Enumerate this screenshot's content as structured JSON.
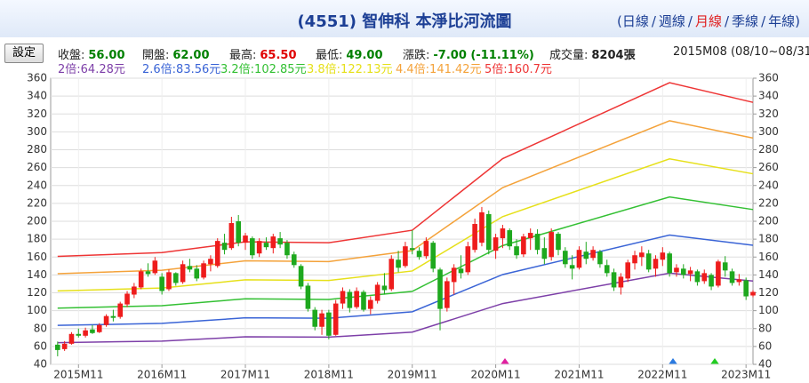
{
  "header": {
    "title": "(4551) 智伸科 本淨比河流圖",
    "period_open": "(",
    "period_sep": "/",
    "period_close": ")",
    "periods": [
      "日線",
      "週線",
      "月線",
      "季線",
      "年線"
    ],
    "active_period_index": 2,
    "button": "設定",
    "stats": [
      {
        "label": "收盤:",
        "value": "56.00",
        "color": "#008000"
      },
      {
        "label": "開盤:",
        "value": "62.00",
        "color": "#008000"
      },
      {
        "label": "最高:",
        "value": "65.50",
        "color": "#e00000"
      },
      {
        "label": "最低:",
        "value": "49.00",
        "color": "#008000"
      },
      {
        "label": "漲跌:",
        "value": "-7.00 (-11.11%)",
        "color": "#008000"
      },
      {
        "label": "成交量:",
        "value": "8204張",
        "color": "#222222"
      }
    ],
    "range": "2015M08 (08/10~08/31)"
  },
  "chart_data": {
    "type": "candlestick",
    "up_color": "#ee1c1c",
    "down_color": "#1ea81e",
    "grid": true,
    "x": [
      "2015M08",
      "2015M09",
      "2015M10",
      "2015M11",
      "2015M12",
      "2016M01",
      "2016M02",
      "2016M03",
      "2016M04",
      "2016M05",
      "2016M06",
      "2016M07",
      "2016M08",
      "2016M09",
      "2016M10",
      "2016M11",
      "2016M12",
      "2017M01",
      "2017M02",
      "2017M03",
      "2017M04",
      "2017M05",
      "2017M06",
      "2017M07",
      "2017M08",
      "2017M09",
      "2017M10",
      "2017M11",
      "2017M12",
      "2018M01",
      "2018M02",
      "2018M03",
      "2018M04",
      "2018M05",
      "2018M06",
      "2018M07",
      "2018M08",
      "2018M09",
      "2018M10",
      "2018M11",
      "2018M12",
      "2019M01",
      "2019M02",
      "2019M03",
      "2019M04",
      "2019M05",
      "2019M06",
      "2019M07",
      "2019M08",
      "2019M09",
      "2019M10",
      "2019M11",
      "2019M12",
      "2020M01",
      "2020M02",
      "2020M03",
      "2020M04",
      "2020M05",
      "2020M06",
      "2020M07",
      "2020M08",
      "2020M09",
      "2020M10",
      "2020M11",
      "2020M12",
      "2021M01",
      "2021M02",
      "2021M03",
      "2021M04",
      "2021M05",
      "2021M06",
      "2021M07",
      "2021M08",
      "2021M09",
      "2021M10",
      "2021M11",
      "2021M12",
      "2022M01",
      "2022M02",
      "2022M03",
      "2022M04",
      "2022M05",
      "2022M06",
      "2022M07",
      "2022M08",
      "2022M09",
      "2022M10",
      "2022M11",
      "2022M12",
      "2023M01",
      "2023M02",
      "2023M03",
      "2023M04",
      "2023M05",
      "2023M06",
      "2023M07",
      "2023M08",
      "2023M09",
      "2023M10",
      "2023M11",
      "2023M12"
    ],
    "open": [
      62,
      57,
      63,
      74,
      72,
      79,
      76,
      84,
      94,
      93,
      107,
      118,
      126,
      144,
      142,
      138,
      124,
      142,
      132,
      150,
      147,
      137,
      152,
      150,
      176,
      170,
      200,
      176,
      181,
      164,
      176,
      170,
      181,
      176,
      163,
      150,
      128,
      101,
      82,
      98,
      73,
      108,
      121,
      104,
      121,
      102,
      111,
      128,
      124,
      157,
      150,
      170,
      167,
      161,
      176,
      146,
      103,
      132,
      147,
      143,
      168,
      176,
      208,
      167,
      181,
      190,
      172,
      163,
      181,
      186,
      170,
      160,
      186,
      167,
      151,
      148,
      166,
      159,
      166,
      151,
      143,
      126,
      136,
      153,
      160,
      164,
      147,
      157,
      164,
      143,
      147,
      141,
      144,
      133,
      140,
      128,
      154,
      144,
      132,
      134,
      117
    ],
    "high": [
      65.5,
      66,
      76,
      80,
      81,
      84,
      86,
      96,
      101,
      110,
      122,
      131,
      147,
      153,
      160,
      142,
      146,
      143,
      156,
      158,
      151,
      156,
      162,
      181,
      186,
      205,
      207,
      187,
      183,
      181,
      182,
      186,
      188,
      179,
      166,
      152,
      131,
      104,
      101,
      101,
      112,
      126,
      124,
      126,
      123,
      116,
      132,
      142,
      162,
      167,
      177,
      190,
      171,
      182,
      178,
      148,
      137,
      152,
      162,
      177,
      203,
      216,
      212,
      186,
      196,
      192,
      180,
      186,
      192,
      191,
      182,
      192,
      188,
      171,
      162,
      172,
      177,
      172,
      168,
      157,
      147,
      142,
      157,
      167,
      172,
      168,
      162,
      171,
      166,
      152,
      152,
      149,
      146,
      146,
      142,
      157,
      161,
      147,
      141,
      137,
      123
    ],
    "low": [
      49,
      55,
      62,
      70,
      70,
      74,
      75,
      82,
      88,
      91,
      104,
      114,
      124,
      138,
      140,
      118,
      122,
      128,
      130,
      143,
      133,
      135,
      144,
      148,
      163,
      168,
      172,
      168,
      158,
      160,
      168,
      164,
      170,
      158,
      148,
      124,
      99,
      78,
      73,
      68,
      72,
      102,
      98,
      102,
      99,
      96,
      108,
      118,
      122,
      143,
      148,
      163,
      157,
      158,
      143,
      78,
      99,
      118,
      136,
      140,
      165,
      172,
      163,
      158,
      170,
      168,
      158,
      160,
      168,
      163,
      152,
      156,
      162,
      148,
      135,
      146,
      152,
      156,
      148,
      138,
      122,
      118,
      132,
      146,
      150,
      143,
      138,
      150,
      138,
      138,
      136,
      133,
      128,
      130,
      123,
      126,
      138,
      128,
      128,
      112,
      115
    ],
    "close": [
      56,
      63,
      74,
      72,
      78,
      75,
      84,
      94,
      92,
      108,
      119,
      127,
      144,
      141,
      156,
      122,
      143,
      131,
      152,
      146,
      136,
      153,
      158,
      178,
      168,
      198,
      176,
      184,
      162,
      178,
      171,
      183,
      174,
      162,
      151,
      127,
      102,
      82,
      97,
      72,
      108,
      122,
      103,
      122,
      101,
      112,
      129,
      123,
      158,
      148,
      172,
      168,
      160,
      178,
      147,
      102,
      133,
      148,
      142,
      172,
      197,
      210,
      168,
      182,
      192,
      172,
      162,
      183,
      187,
      168,
      158,
      188,
      168,
      152,
      147,
      168,
      158,
      168,
      152,
      142,
      126,
      138,
      154,
      162,
      165,
      146,
      158,
      165,
      142,
      148,
      140,
      145,
      132,
      142,
      127,
      155,
      145,
      131,
      135,
      116,
      121
    ],
    "series": [
      {
        "name": "2倍:64.28元",
        "color": "#7d3fa8",
        "x": [
          "2015M08",
          "2016M11",
          "2017M11",
          "2018M11",
          "2019M11",
          "2020M12",
          "2022M12",
          "2023M12"
        ],
        "values": [
          64.28,
          66,
          70.8,
          70.4,
          76,
          108,
          142,
          133.2
        ]
      },
      {
        "name": "2.6倍:83.56元",
        "color": "#3a64d6",
        "x": [
          "2015M08",
          "2016M11",
          "2017M11",
          "2018M11",
          "2019M11",
          "2020M12",
          "2022M12",
          "2023M12"
        ],
        "values": [
          83.56,
          85.8,
          92,
          91.5,
          98.8,
          140.4,
          184.6,
          173.2
        ]
      },
      {
        "name": "3.2倍:102.85元",
        "color": "#33c033",
        "x": [
          "2015M08",
          "2016M11",
          "2017M11",
          "2018M11",
          "2019M11",
          "2020M12",
          "2022M12",
          "2023M12"
        ],
        "values": [
          102.85,
          105.6,
          113.3,
          112.6,
          121.6,
          172.8,
          227.2,
          213.1
        ]
      },
      {
        "name": "3.8倍:122.13元",
        "color": "#e6e01a",
        "x": [
          "2015M08",
          "2016M11",
          "2017M11",
          "2018M11",
          "2019M11",
          "2020M12",
          "2022M12",
          "2023M12"
        ],
        "values": [
          122.13,
          125.4,
          134.5,
          133.8,
          144.4,
          205.2,
          269.8,
          253.1
        ]
      },
      {
        "name": "4.4倍:141.42元",
        "color": "#f4a23a",
        "x": [
          "2015M08",
          "2016M11",
          "2017M11",
          "2018M11",
          "2019M11",
          "2020M12",
          "2022M12",
          "2023M12"
        ],
        "values": [
          141.42,
          145.2,
          155.8,
          154.9,
          167.2,
          237.6,
          312.4,
          293
        ]
      },
      {
        "name": "5倍:160.7元",
        "color": "#ee3535",
        "x": [
          "2015M08",
          "2016M11",
          "2017M11",
          "2018M11",
          "2019M11",
          "2020M12",
          "2022M12",
          "2023M12"
        ],
        "values": [
          160.7,
          165,
          177,
          176,
          190,
          270,
          355,
          333
        ]
      }
    ],
    "xlim": [
      "2015M07",
      "2023M12"
    ],
    "xticks": [
      "2015M11",
      "2016M11",
      "2017M11",
      "2018M11",
      "2019M11",
      "2020M11",
      "2021M11",
      "2022M11",
      "2023M11"
    ],
    "ylim": [
      40,
      360
    ],
    "yticks": [
      40,
      60,
      80,
      100,
      120,
      140,
      160,
      180,
      200,
      220,
      240,
      260,
      280,
      300,
      320,
      340,
      360
    ],
    "y2lim": [
      40,
      360
    ],
    "y2ticks": [
      40,
      60,
      80,
      100,
      120,
      140,
      160,
      180,
      200,
      220,
      240,
      260,
      280,
      300,
      320,
      340,
      360
    ]
  }
}
